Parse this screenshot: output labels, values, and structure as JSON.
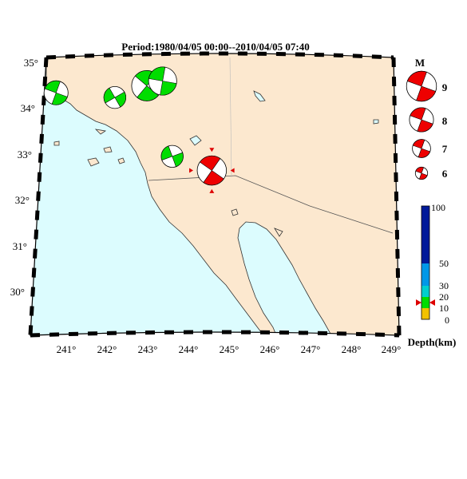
{
  "map": {
    "title": "Period:1980/04/05 00:00--2010/04/05 07:40",
    "lon_ticks": [
      "241°",
      "242°",
      "243°",
      "244°",
      "245°",
      "246°",
      "247°",
      "248°",
      "249°"
    ],
    "lat_ticks": [
      "35°",
      "34°",
      "33°",
      "32°",
      "31°",
      "30°"
    ],
    "colors": {
      "land": "#fce8cf",
      "sea": "#dcfcfe",
      "compression": "#ee0000",
      "compression_shallow": "#00dd00",
      "dilatation": "#ffffff"
    }
  },
  "chart_data": {
    "type": "map",
    "projection": "conic",
    "lon_range": [
      240.3,
      249.2
    ],
    "lat_range": [
      29.2,
      35.1
    ],
    "events": [
      {
        "lon": 240.6,
        "lat": 34.35,
        "magnitude": 6.7,
        "depth_km": 14,
        "color": "#00dd00"
      },
      {
        "lon": 242.1,
        "lat": 34.25,
        "magnitude": 6.5,
        "depth_km": 10,
        "color": "#00dd00"
      },
      {
        "lon": 242.9,
        "lat": 34.5,
        "magnitude": 7.3,
        "depth_km": 12,
        "color": "#00dd00"
      },
      {
        "lon": 243.3,
        "lat": 34.6,
        "magnitude": 7.1,
        "depth_km": 6,
        "color": "#00dd00"
      },
      {
        "lon": 243.6,
        "lat": 33.0,
        "magnitude": 6.5,
        "depth_km": 10,
        "color": "#00dd00"
      },
      {
        "lon": 244.6,
        "lat": 32.7,
        "magnitude": 7.2,
        "depth_km": 12,
        "color": "#ee0000",
        "highlighted": true
      }
    ]
  },
  "legend": {
    "title": "M",
    "items": [
      {
        "label": "9",
        "magnitude": 9
      },
      {
        "label": "8",
        "magnitude": 8
      },
      {
        "label": "7",
        "magnitude": 7
      },
      {
        "label": "6",
        "magnitude": 6
      }
    ]
  },
  "colorbar": {
    "label": "Depth(km)",
    "ticks": [
      "100",
      "50",
      "30",
      "20",
      "10",
      "0"
    ],
    "marker_value": 15,
    "segments": [
      {
        "from": 0,
        "to": 10,
        "color": "#f2c200"
      },
      {
        "from": 10,
        "to": 20,
        "color": "#00dd00"
      },
      {
        "from": 20,
        "to": 30,
        "color": "#00cfcf"
      },
      {
        "from": 30,
        "to": 50,
        "color": "#0098e8"
      },
      {
        "from": 50,
        "to": 100,
        "color": "#001a9a"
      }
    ]
  }
}
